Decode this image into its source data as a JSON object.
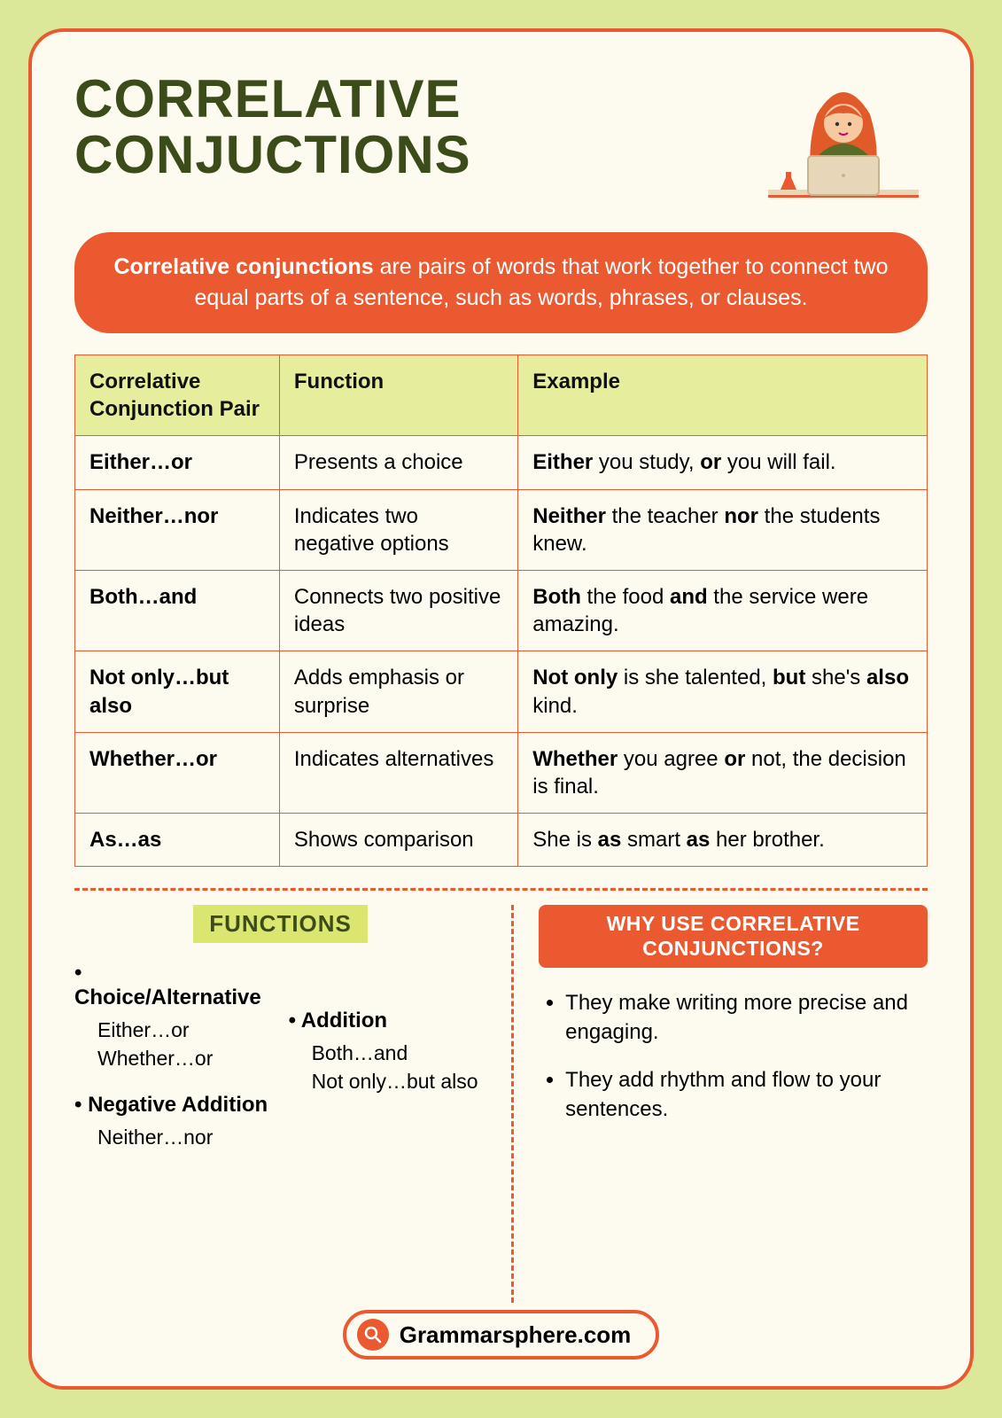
{
  "colors": {
    "page_bg": "#dbe89a",
    "card_bg": "#fdfbef",
    "accent": "#ea592f",
    "title": "#3b4c1a",
    "table_header_bg": "#e6ed9c",
    "functions_badge_bg": "#dbe670"
  },
  "title_line1": "CORRELATIVE",
  "title_line2": "CONJUCTIONS",
  "banner_html": "<b>Correlative conjunctions</b> are pairs of words that work together to connect two equal parts of a sentence, such as words, phrases, or clauses.",
  "table": {
    "columns": [
      "Correlative Conjunction Pair",
      "Function",
      "Example"
    ],
    "rows": [
      {
        "pair": "Either…or",
        "function": "Presents a choice",
        "example_html": "<b>Either</b> you study, <b>or</b> you will fail."
      },
      {
        "pair": "Neither…nor",
        "function": "Indicates two negative options",
        "example_html": "<b>Neither</b> the teacher <b>nor</b> the students knew."
      },
      {
        "pair": "Both…and",
        "function": "Connects two positive ideas",
        "example_html": "<b>Both</b> the food <b>and</b> the service were amazing."
      },
      {
        "pair": "Not only…but also",
        "function": "Adds emphasis or surprise",
        "example_html": "<b>Not only</b> is she talented, <b>but</b> she's <b>also</b> kind."
      },
      {
        "pair": "Whether…or",
        "function": "Indicates alternatives",
        "example_html": "<b>Whether</b> you agree <b>or</b> not, the decision is final."
      },
      {
        "pair": "As…as",
        "function": "Shows comparison",
        "example_html": "She is <b>as</b> smart <b>as</b> her brother."
      }
    ]
  },
  "functions": {
    "heading": "FUNCTIONS",
    "left_items": [
      {
        "head": "Choice/Alternative",
        "subs": [
          "Either…or",
          "Whether…or"
        ]
      },
      {
        "head": "Negative Addition",
        "subs": [
          "Neither…nor"
        ]
      }
    ],
    "right_items": [
      {
        "head": "Addition",
        "subs": [
          "Both…and",
          "Not only…but also"
        ]
      }
    ]
  },
  "why": {
    "heading": "WHY USE CORRELATIVE CONJUNCTIONS?",
    "points": [
      "They make writing more precise and engaging.",
      "They add rhythm and flow to your sentences."
    ]
  },
  "footer_site": "Grammarsphere.com",
  "illustration": {
    "hair_color": "#e05a2a",
    "skin_color": "#f6c9a0",
    "shirt_color": "#5a6b28",
    "laptop_color": "#e8d6b8",
    "desk_color": "#e8d6b8"
  }
}
